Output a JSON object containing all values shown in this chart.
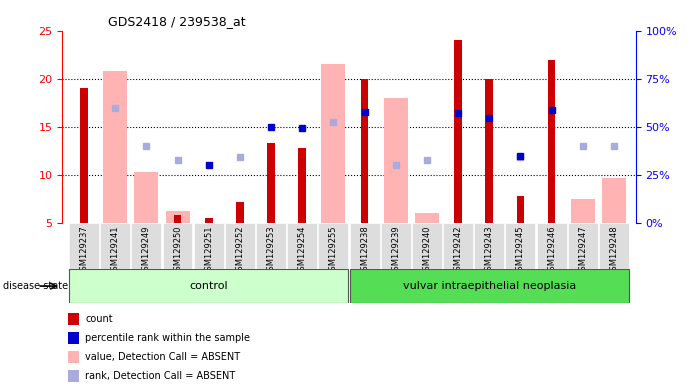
{
  "title": "GDS2418 / 239538_at",
  "samples": [
    "GSM129237",
    "GSM129241",
    "GSM129249",
    "GSM129250",
    "GSM129251",
    "GSM129252",
    "GSM129253",
    "GSM129254",
    "GSM129255",
    "GSM129238",
    "GSM129239",
    "GSM129240",
    "GSM129242",
    "GSM129243",
    "GSM129245",
    "GSM129246",
    "GSM129247",
    "GSM129248"
  ],
  "red_bars": [
    19.0,
    null,
    null,
    5.8,
    5.5,
    7.2,
    13.3,
    12.8,
    null,
    20.0,
    null,
    null,
    24.0,
    20.0,
    7.8,
    22.0,
    null,
    null
  ],
  "pink_bars": [
    null,
    20.8,
    10.3,
    6.2,
    null,
    null,
    null,
    null,
    21.5,
    null,
    18.0,
    6.0,
    null,
    null,
    null,
    null,
    7.5,
    9.7
  ],
  "blue_squares": [
    null,
    null,
    null,
    null,
    11.0,
    null,
    15.0,
    14.9,
    null,
    16.5,
    null,
    null,
    16.4,
    15.9,
    12.0,
    16.7,
    null,
    null
  ],
  "lightblue_squares": [
    null,
    17.0,
    13.0,
    11.5,
    null,
    11.8,
    null,
    null,
    15.5,
    null,
    11.0,
    11.5,
    null,
    null,
    11.8,
    null,
    13.0,
    13.0
  ],
  "red_bar_color": "#cc0000",
  "pink_bar_color": "#ffb3b3",
  "blue_sq_color": "#0000cc",
  "lightblue_sq_color": "#aaaadd",
  "ylim_left": [
    5,
    25
  ],
  "ylim_right": [
    0,
    100
  ],
  "yticks_left": [
    5,
    10,
    15,
    20,
    25
  ],
  "yticks_right": [
    0,
    25,
    50,
    75,
    100
  ],
  "ytick_labels_right": [
    "0%",
    "25%",
    "50%",
    "75%",
    "100%"
  ],
  "control_label": "control",
  "disease_label": "vulvar intraepithelial neoplasia",
  "n_control": 9,
  "n_disease": 9,
  "legend_items": [
    {
      "label": "count",
      "color": "#cc0000",
      "marker": "s"
    },
    {
      "label": "percentile rank within the sample",
      "color": "#0000cc",
      "marker": "s"
    },
    {
      "label": "value, Detection Call = ABSENT",
      "color": "#ffb3b3",
      "marker": "s"
    },
    {
      "label": "rank, Detection Call = ABSENT",
      "color": "#aaaadd",
      "marker": "s"
    }
  ],
  "background_color": "#ffffff",
  "ax_bg_color": "#ffffff",
  "grid_color": "black",
  "disease_state_label": "disease state"
}
